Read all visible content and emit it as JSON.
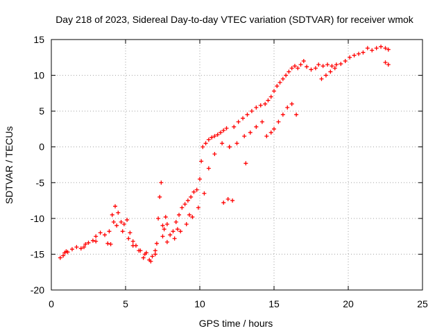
{
  "chart_data": {
    "type": "scatter",
    "title": "Day 218 of 2023, Sidereal Day-to-day VTEC variation (SDTVAR) for receiver wmok",
    "xlabel": "GPS time / hours",
    "ylabel": "SDTVAR / TECUs",
    "xlim": [
      0,
      25
    ],
    "ylim": [
      -20,
      15
    ],
    "x_ticks": [
      "0",
      "5",
      "10",
      "15",
      "20",
      "25"
    ],
    "y_ticks": [
      "15",
      "10",
      "5",
      "0",
      "-5",
      "-10",
      "-15",
      "-20"
    ],
    "grid": true,
    "marker": "plus",
    "color": "#ff0000",
    "x": [
      0.6,
      0.8,
      0.9,
      1.0,
      1.1,
      1.4,
      1.7,
      2.0,
      2.3,
      2.5,
      2.8,
      3.0,
      3.3,
      3.6,
      3.8,
      3.9,
      4.1,
      4.3,
      4.5,
      4.7,
      4.9,
      5.1,
      5.3,
      5.5,
      5.7,
      6.0,
      6.2,
      6.4,
      6.6,
      6.8,
      7.0,
      7.1,
      7.2,
      7.3,
      7.4,
      7.6,
      7.8,
      8.0,
      8.2,
      8.4,
      8.6,
      8.8,
      9.0,
      9.2,
      9.4,
      9.6,
      9.8,
      10.0,
      10.1,
      10.2,
      10.4,
      10.6,
      10.8,
      11.0,
      11.2,
      11.4,
      11.6,
      11.8,
      12.0,
      12.3,
      12.6,
      12.9,
      13.2,
      13.5,
      13.8,
      14.1,
      14.4,
      14.6,
      14.8,
      15.0,
      15.2,
      15.4,
      15.6,
      15.8,
      16.0,
      16.2,
      16.4,
      16.6,
      16.8,
      17.0,
      17.2,
      17.5,
      17.8,
      18.0,
      18.3,
      18.6,
      18.9,
      19.2,
      19.5,
      19.8,
      20.1,
      20.4,
      20.7,
      21.0,
      21.3,
      21.6,
      21.9,
      22.2,
      22.5,
      22.7,
      2.2,
      3.0,
      4.2,
      4.4,
      4.8,
      5.2,
      5.5,
      5.9,
      6.3,
      6.7,
      7.0,
      7.5,
      7.8,
      8.3,
      8.7,
      9.1,
      9.5,
      9.9,
      10.3,
      10.6,
      11.0,
      11.5,
      12.0,
      12.5,
      13.0,
      13.4,
      13.8,
      14.2,
      14.5,
      14.8,
      15.0,
      15.3,
      15.6,
      15.9,
      16.2,
      16.5,
      18.2,
      18.5,
      18.8,
      19.1,
      22.5,
      22.7,
      7.5,
      7.7,
      13.1,
      12.2,
      11.9,
      11.6,
      8.5,
      9.3,
      4.0
    ],
    "y": [
      -15.5,
      -15.2,
      -14.8,
      -14.6,
      -14.7,
      -14.3,
      -14.0,
      -14.2,
      -13.6,
      -13.4,
      -13.1,
      -12.5,
      -12.0,
      -12.3,
      -13.5,
      -11.8,
      -9.5,
      -8.3,
      -9.2,
      -10.5,
      -10.8,
      -10.2,
      -12.0,
      -13.2,
      -13.8,
      -14.5,
      -15.5,
      -14.8,
      -15.8,
      -15.3,
      -15.0,
      -13.5,
      -10.0,
      -7.0,
      -5.0,
      -11.5,
      -10.8,
      -12.3,
      -11.8,
      -10.5,
      -9.5,
      -8.5,
      -8.0,
      -7.5,
      -7.0,
      -6.3,
      -6.0,
      -4.5,
      -2.0,
      0.0,
      0.5,
      1.0,
      1.3,
      1.5,
      1.7,
      2.0,
      2.3,
      2.6,
      0.0,
      2.8,
      3.5,
      4.0,
      4.5,
      5.0,
      5.5,
      5.8,
      6.0,
      6.5,
      7.0,
      7.8,
      8.5,
      9.0,
      9.5,
      10.0,
      10.5,
      11.0,
      11.3,
      11.0,
      11.5,
      12.0,
      11.2,
      10.8,
      11.0,
      11.5,
      11.3,
      11.5,
      11.3,
      11.5,
      11.6,
      12.0,
      12.5,
      12.8,
      13.0,
      13.2,
      13.8,
      13.5,
      13.8,
      14.0,
      13.8,
      13.6,
      -14.0,
      -13.2,
      -10.5,
      -11.0,
      -11.8,
      -12.8,
      -13.8,
      -14.5,
      -15.0,
      -16.0,
      -14.5,
      -12.5,
      -13.3,
      -12.8,
      -11.8,
      -10.8,
      -9.8,
      -8.5,
      -6.5,
      -3.0,
      -1.0,
      0.5,
      0.0,
      0.5,
      1.5,
      2.0,
      2.8,
      3.5,
      1.5,
      2.0,
      2.5,
      3.5,
      4.5,
      5.5,
      6.0,
      4.5,
      9.5,
      10.0,
      10.5,
      11.0,
      11.8,
      11.5,
      -11.0,
      -9.8,
      -2.3,
      -7.5,
      -7.3,
      -7.8,
      -11.5,
      -9.5,
      -13.6
    ]
  }
}
